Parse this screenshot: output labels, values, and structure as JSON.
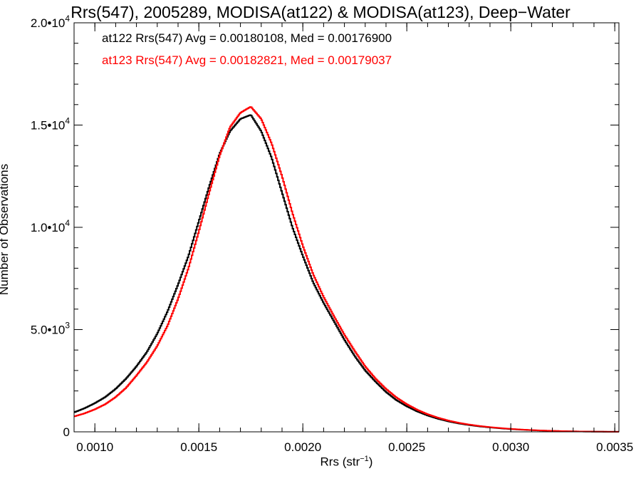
{
  "chart_data": {
    "type": "line",
    "title": "Rrs(547), 2005289, MODISA(at122) & MODISA(at123), Deep−Water",
    "xlabel": "Rrs (str",
    "xlabel_sup": "−1",
    "xlabel_end": ")",
    "ylabel": "Number of Observations",
    "xlim": [
      0.0009,
      0.00352
    ],
    "ylim": [
      0,
      20000
    ],
    "xticks": [
      {
        "value": 0.001,
        "label": "0.0010"
      },
      {
        "value": 0.0015,
        "label": "0.0015"
      },
      {
        "value": 0.002,
        "label": "0.0020"
      },
      {
        "value": 0.0025,
        "label": "0.0025"
      },
      {
        "value": 0.003,
        "label": "0.0030"
      },
      {
        "value": 0.0035,
        "label": "0.0035"
      }
    ],
    "yticks": [
      {
        "value": 0,
        "mant": "0",
        "exp": ""
      },
      {
        "value": 5000,
        "mant": "5.0•10",
        "exp": "3"
      },
      {
        "value": 10000,
        "mant": "1.0•10",
        "exp": "4"
      },
      {
        "value": 15000,
        "mant": "1.5•10",
        "exp": "4"
      },
      {
        "value": 20000,
        "mant": "2.0•10",
        "exp": "4"
      }
    ],
    "annotations": [
      {
        "text": "at122 Rrs(547) Avg = 0.00180108, Med = 0.00176900",
        "color": "#000000"
      },
      {
        "text": "at123 Rrs(547) Avg = 0.00182821, Med = 0.00179037",
        "color": "#ff0000"
      }
    ],
    "series": [
      {
        "color": "#000000",
        "x": [
          0.0009,
          0.00095,
          0.001,
          0.00105,
          0.0011,
          0.00115,
          0.0012,
          0.00125,
          0.0013,
          0.00135,
          0.0014,
          0.00145,
          0.0015,
          0.00155,
          0.0016,
          0.00165,
          0.0017,
          0.00175,
          0.0018,
          0.00185,
          0.0019,
          0.00195,
          0.002,
          0.00205,
          0.0021,
          0.00215,
          0.0022,
          0.00225,
          0.0023,
          0.00235,
          0.0024,
          0.00245,
          0.0025,
          0.00255,
          0.0026,
          0.00265,
          0.0027,
          0.00275,
          0.0028,
          0.00285,
          0.0029,
          0.00295,
          0.003,
          0.00305,
          0.0031,
          0.00315,
          0.0032,
          0.00325,
          0.0033,
          0.00335,
          0.0034,
          0.00345,
          0.0035
        ],
        "y": [
          950,
          1150,
          1400,
          1700,
          2100,
          2600,
          3200,
          3900,
          4800,
          5900,
          7200,
          8600,
          10300,
          12000,
          13600,
          14700,
          15300,
          15500,
          14700,
          13400,
          11700,
          10000,
          8600,
          7300,
          6300,
          5400,
          4500,
          3700,
          3000,
          2450,
          1950,
          1550,
          1250,
          1000,
          800,
          640,
          510,
          410,
          330,
          265,
          215,
          170,
          135,
          105,
          80,
          60,
          45,
          32,
          22,
          15,
          10,
          6,
          3
        ]
      },
      {
        "color": "#ff0000",
        "x": [
          0.0009,
          0.00095,
          0.001,
          0.00105,
          0.0011,
          0.00115,
          0.0012,
          0.00125,
          0.0013,
          0.00135,
          0.0014,
          0.00145,
          0.0015,
          0.00155,
          0.0016,
          0.00165,
          0.0017,
          0.00175,
          0.0018,
          0.00185,
          0.0019,
          0.00195,
          0.002,
          0.00205,
          0.0021,
          0.00215,
          0.0022,
          0.00225,
          0.0023,
          0.00235,
          0.0024,
          0.00245,
          0.0025,
          0.00255,
          0.0026,
          0.00265,
          0.0027,
          0.00275,
          0.0028,
          0.00285,
          0.0029,
          0.00295,
          0.003,
          0.00305,
          0.0031,
          0.00315,
          0.0032,
          0.00325,
          0.0033,
          0.00335,
          0.0034,
          0.00345,
          0.0035
        ],
        "y": [
          750,
          900,
          1100,
          1350,
          1700,
          2150,
          2750,
          3400,
          4200,
          5200,
          6500,
          8000,
          9800,
          11700,
          13500,
          14900,
          15600,
          15900,
          15300,
          14100,
          12500,
          10700,
          9100,
          7700,
          6600,
          5650,
          4750,
          3950,
          3200,
          2600,
          2100,
          1680,
          1350,
          1080,
          860,
          690,
          550,
          440,
          355,
          285,
          230,
          183,
          145,
          113,
          87,
          66,
          49,
          35,
          24,
          16,
          11,
          7,
          4
        ]
      }
    ]
  }
}
